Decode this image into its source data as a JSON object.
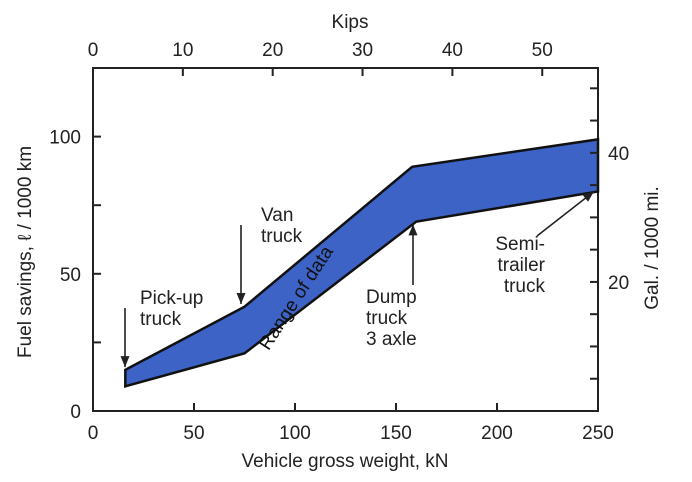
{
  "chart_data": {
    "type": "area",
    "title": "",
    "xlabel": "Vehicle gross weight, kN",
    "ylabel": "Fuel savings, ℓ / 1000 km",
    "x2label": "Kips",
    "y2label": "Gal. / 1000 mi.",
    "xlim": [
      0,
      250
    ],
    "ylim": [
      0,
      125
    ],
    "x_ticks": [
      0,
      50,
      100,
      150,
      200,
      250
    ],
    "y_ticks": [
      0,
      50,
      100
    ],
    "x2_ticks": [
      0,
      10,
      20,
      30,
      40,
      50
    ],
    "y2_ticks": [
      20,
      40
    ],
    "kN_per_kip": 4.448,
    "l_per_km_per_gal_per_mi": 2.352,
    "band_label": "Range of data",
    "band_color": "#3e63c6",
    "upper": {
      "x": [
        16,
        75,
        158,
        250
      ],
      "y": [
        15,
        38,
        89,
        99
      ]
    },
    "lower": {
      "x": [
        16,
        75,
        160,
        250
      ],
      "y": [
        9,
        21,
        69,
        80
      ]
    },
    "annotations": [
      {
        "id": "pickup",
        "lines": [
          "Pick-up",
          "truck"
        ],
        "arrow_x": 16,
        "arrow_y": 16
      },
      {
        "id": "van",
        "lines": [
          "Van",
          "truck"
        ],
        "arrow_x": 74,
        "arrow_y": 39
      },
      {
        "id": "dump",
        "lines": [
          "Dump",
          "truck",
          "3 axle"
        ],
        "arrow_x": 160,
        "arrow_y": 68
      },
      {
        "id": "semi",
        "lines": [
          "Semi-",
          "trailer",
          "truck"
        ],
        "arrow_x": 248,
        "arrow_y": 80
      }
    ]
  }
}
